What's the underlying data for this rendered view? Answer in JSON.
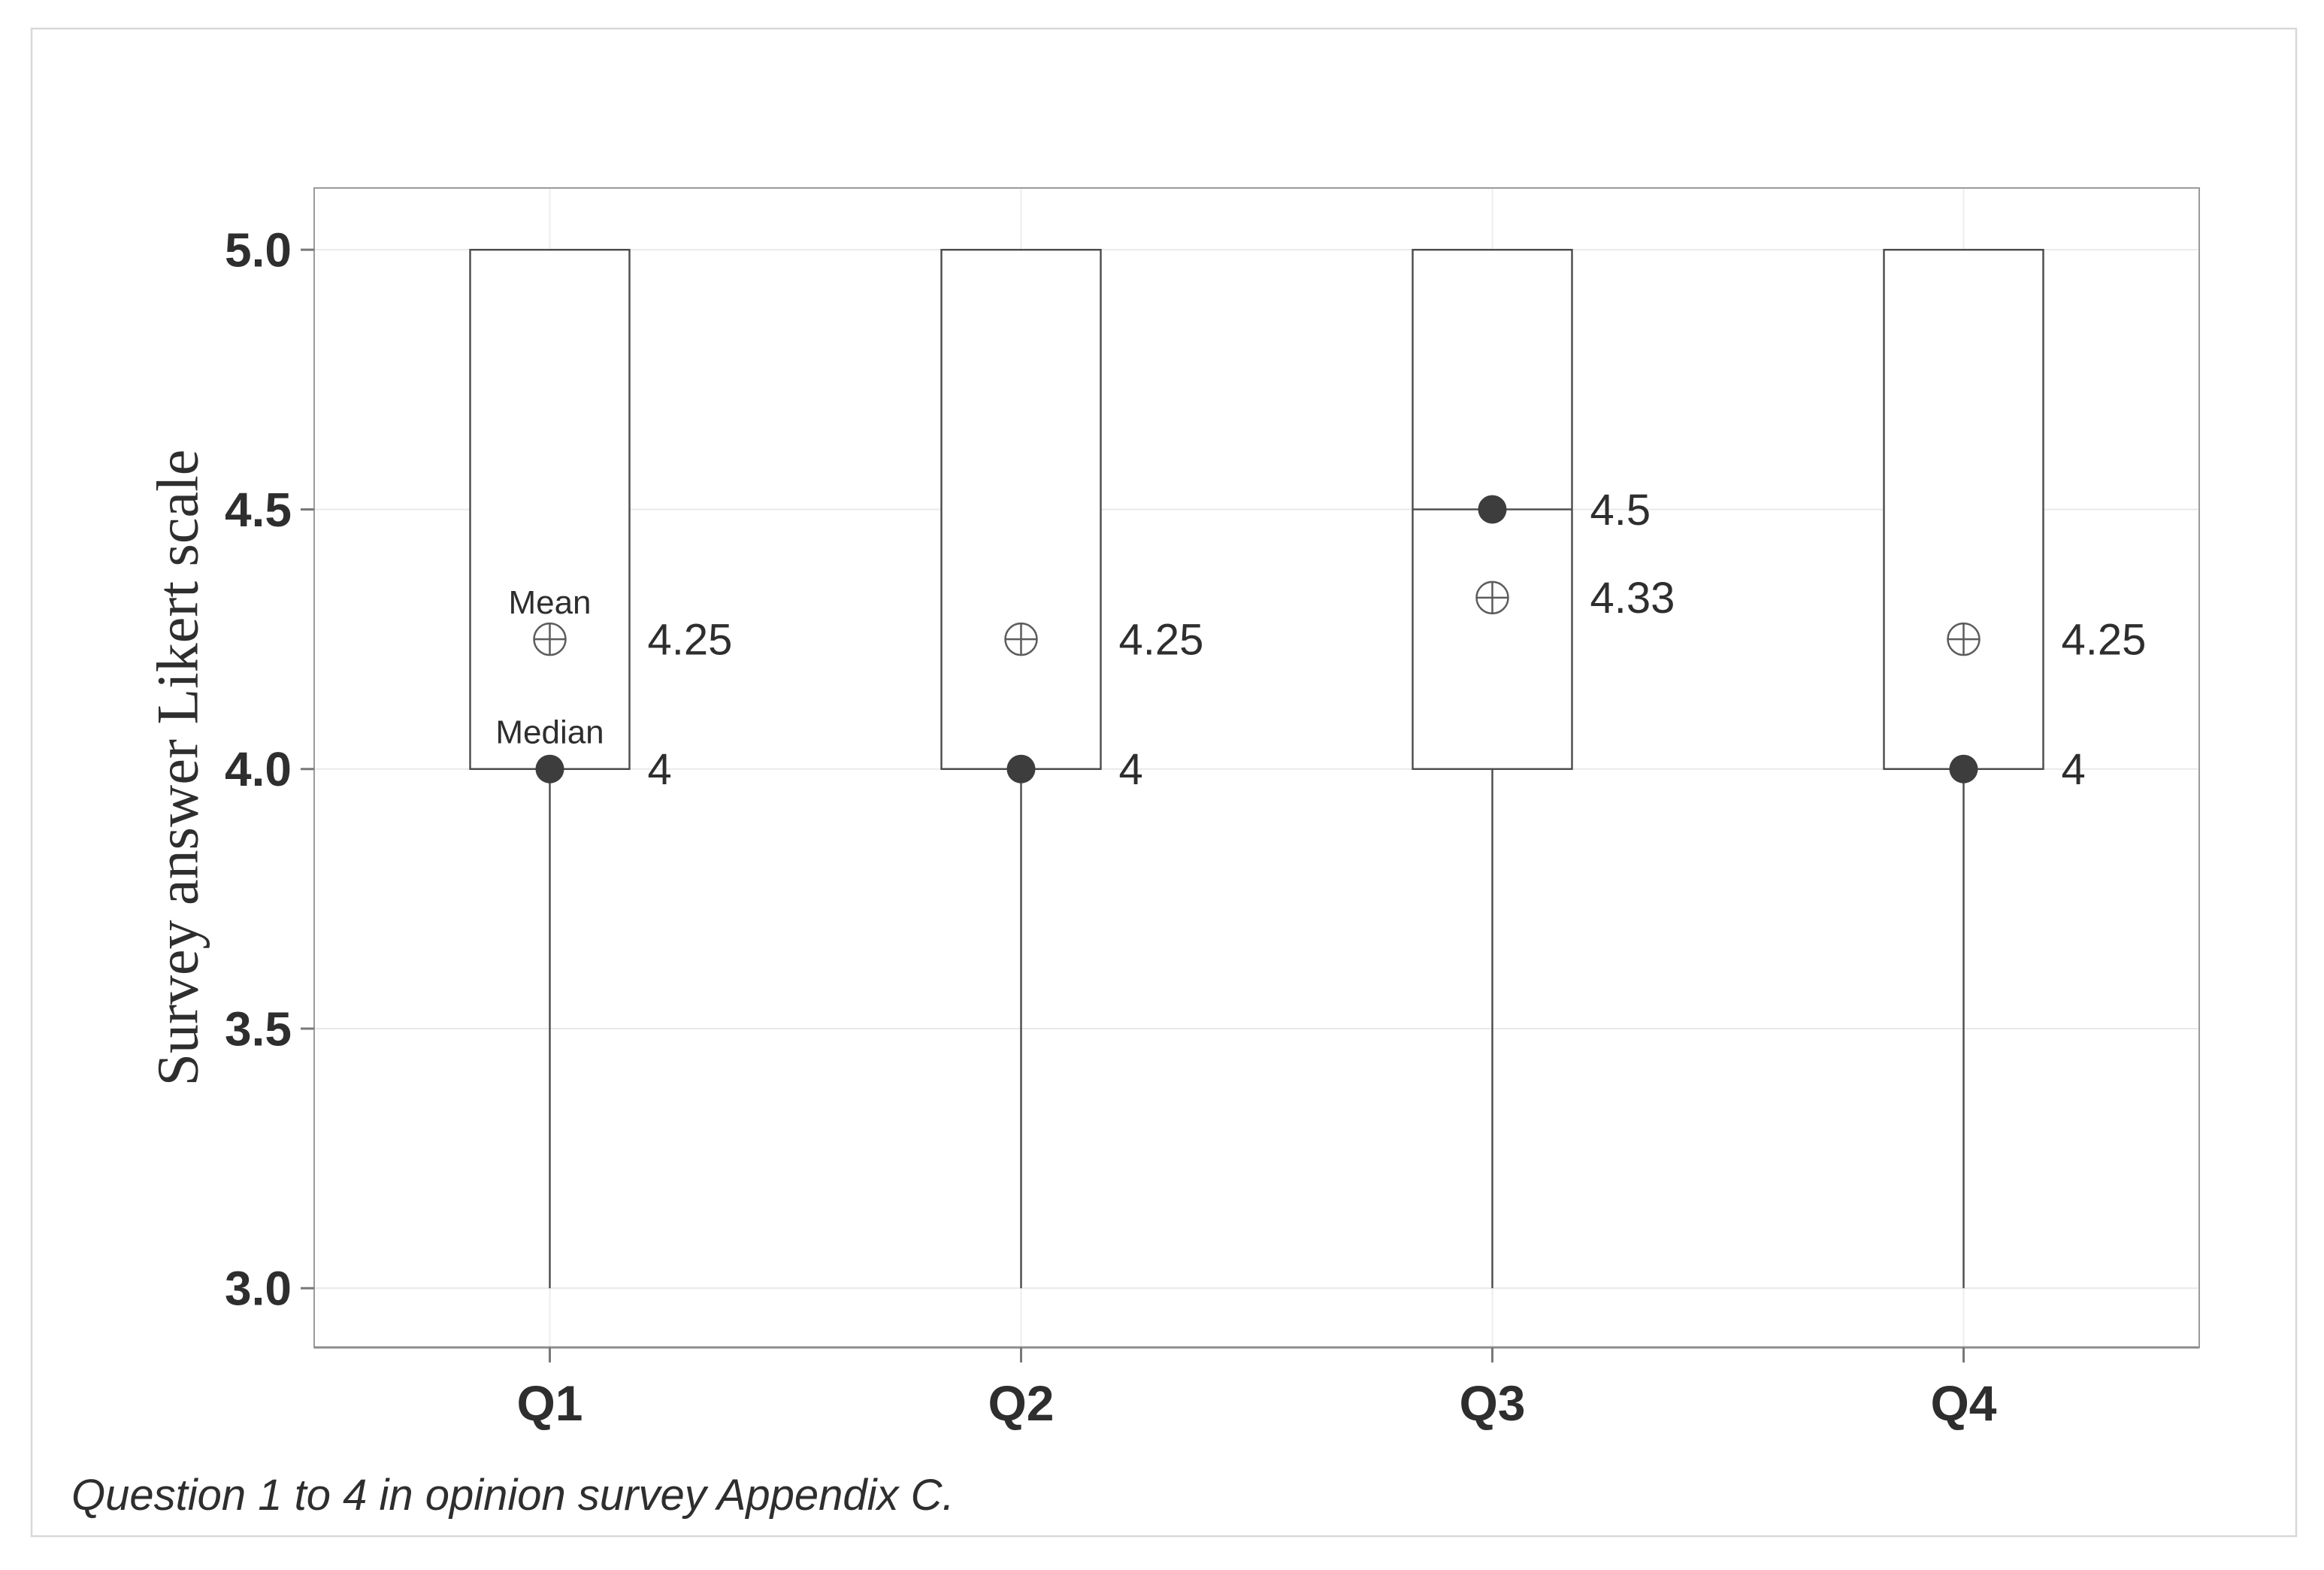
{
  "chart_data": {
    "type": "boxplot",
    "title": "",
    "ylabel": "Survey answer Likert scale",
    "xlabel": "",
    "caption": "Question 1 to 4 in opinion survey Appendix C.",
    "categories": [
      "Q1",
      "Q2",
      "Q3",
      "Q4"
    ],
    "ylim": [
      2.886,
      5.119
    ],
    "yticks": [
      {
        "value": 5.0,
        "label": "5.0"
      },
      {
        "value": 4.5,
        "label": "4.5"
      },
      {
        "value": 4.0,
        "label": "4.0"
      },
      {
        "value": 3.5,
        "label": "3.5"
      },
      {
        "value": 3.0,
        "label": "3.0"
      }
    ],
    "grid": true,
    "legend_position": "none",
    "boxes": [
      {
        "category": "Q1",
        "box_top": 5.0,
        "box_bottom": 4.0,
        "median": 4.0,
        "mean": 4.25,
        "whisker_low": 3.0,
        "whisker_high": 5.0,
        "mean_value_label": "4.25",
        "median_value_label": "4",
        "mean_annotation": "Mean",
        "median_annotation": "Median"
      },
      {
        "category": "Q2",
        "box_top": 5.0,
        "box_bottom": 4.0,
        "median": 4.0,
        "mean": 4.25,
        "whisker_low": 3.0,
        "whisker_high": 5.0,
        "mean_value_label": "4.25",
        "median_value_label": "4",
        "mean_annotation": "",
        "median_annotation": ""
      },
      {
        "category": "Q3",
        "box_top": 5.0,
        "box_bottom": 4.0,
        "median": 4.5,
        "mean": 4.33,
        "whisker_low": 3.0,
        "whisker_high": 5.0,
        "mean_value_label": "4.33",
        "median_value_label": "4.5",
        "mean_annotation": "",
        "median_annotation": ""
      },
      {
        "category": "Q4",
        "box_top": 5.0,
        "box_bottom": 4.0,
        "median": 4.0,
        "mean": 4.25,
        "whisker_low": 3.0,
        "whisker_high": 5.0,
        "mean_value_label": "4.25",
        "median_value_label": "4",
        "mean_annotation": "",
        "median_annotation": ""
      }
    ],
    "colors": {
      "background": "#ffffff",
      "figure_border": "#d8d8d8",
      "plot_frame": "#9b9b9b",
      "axis_line": "#8c8c8c",
      "tick_mark": "#787878",
      "grid_horizontal": "#e9e9e9",
      "grid_vertical": "#ededed",
      "box_stroke": "#4a4a4a",
      "box_fill": "#ffffff",
      "median_dot": "#3d3d3d",
      "mean_marker": "#5c5c5c",
      "tick_label": "#1c1c1c",
      "value_label": "#3a3a3a",
      "annotation_label": "#474747",
      "axis_title": "#333333",
      "caption_text": "#3f3f3f"
    }
  }
}
